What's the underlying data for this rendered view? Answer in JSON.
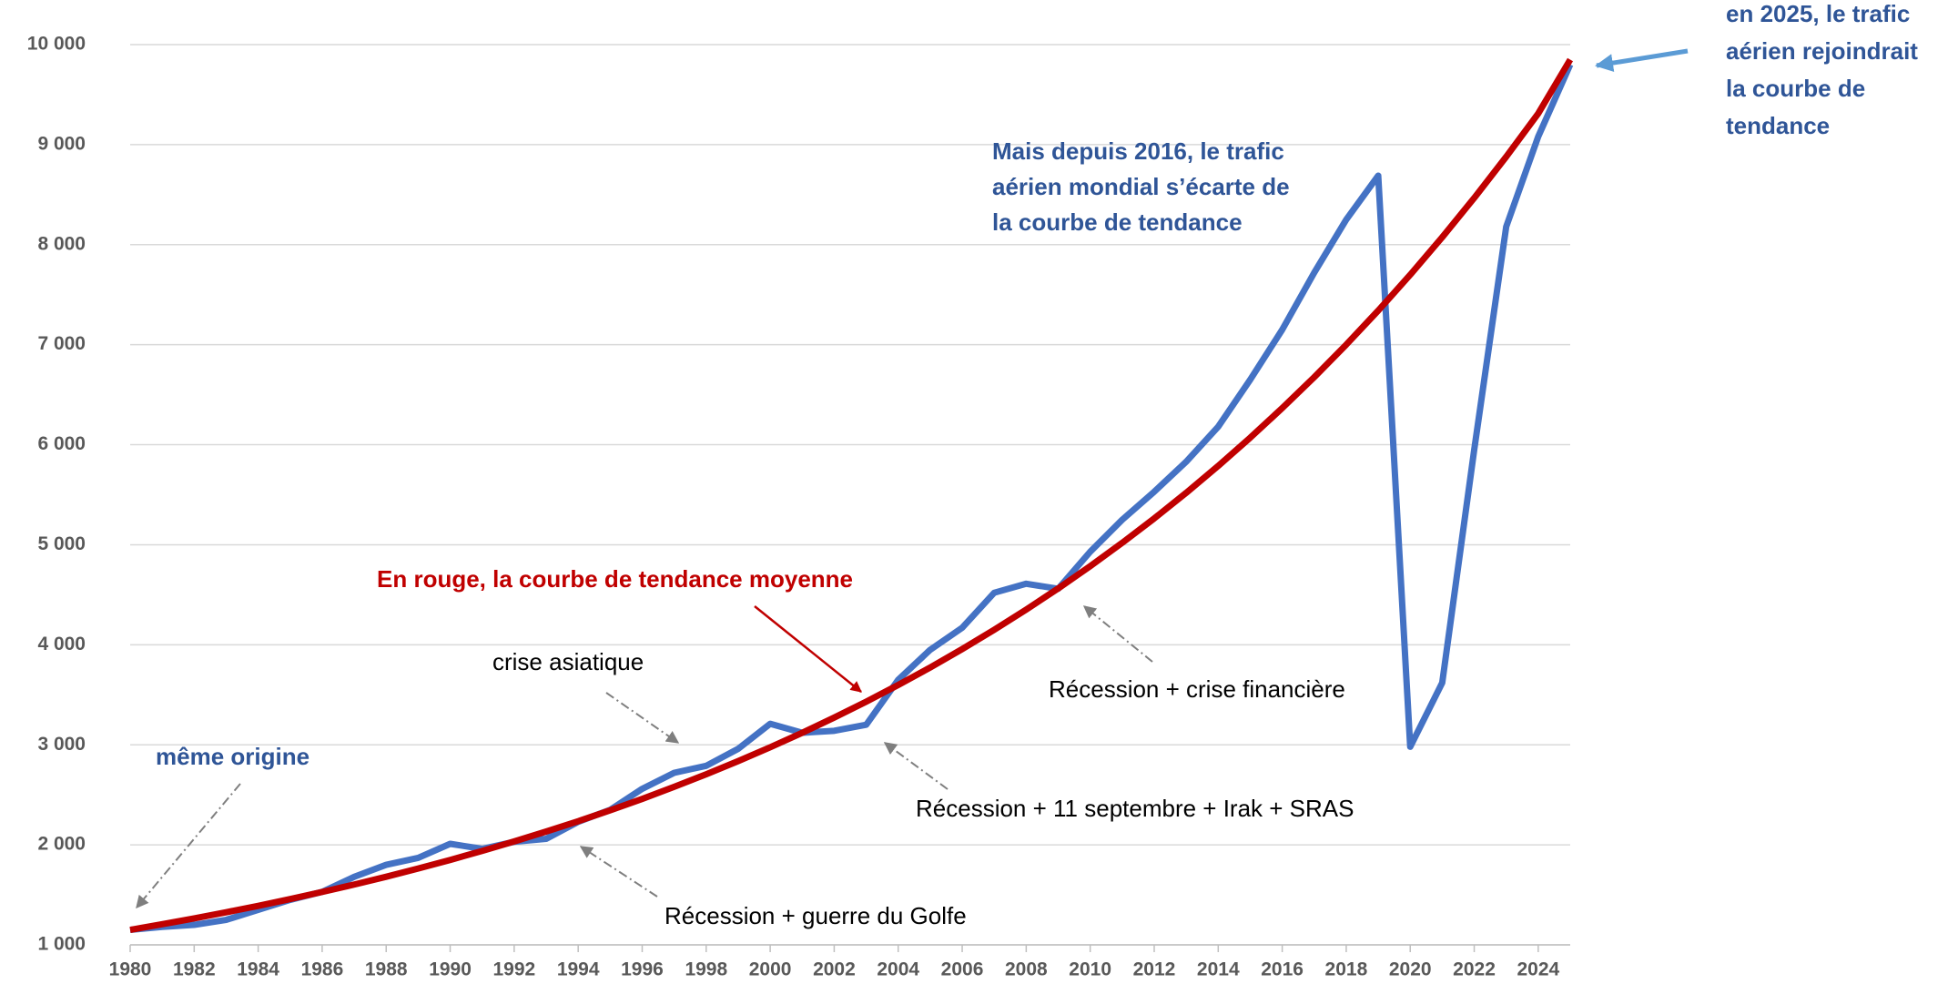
{
  "chart_data": {
    "type": "line",
    "x": [
      1980,
      1981,
      1982,
      1983,
      1984,
      1985,
      1986,
      1987,
      1988,
      1989,
      1990,
      1991,
      1992,
      1993,
      1994,
      1995,
      1996,
      1997,
      1998,
      1999,
      2000,
      2001,
      2002,
      2003,
      2004,
      2005,
      2006,
      2007,
      2008,
      2009,
      2010,
      2011,
      2012,
      2013,
      2014,
      2015,
      2016,
      2017,
      2018,
      2019,
      2020,
      2021,
      2022,
      2023,
      2024,
      2025
    ],
    "series": [
      {
        "color": "#4472c4",
        "values": [
          1150,
          1180,
          1200,
          1250,
          1350,
          1450,
          1530,
          1680,
          1800,
          1870,
          2010,
          1960,
          2030,
          2060,
          2230,
          2350,
          2560,
          2720,
          2790,
          2960,
          3210,
          3120,
          3140,
          3200,
          3650,
          3950,
          4170,
          4520,
          4610,
          4560,
          4930,
          5250,
          5530,
          5830,
          6180,
          6650,
          7150,
          7720,
          8250,
          8690,
          2980,
          3620,
          5950,
          8180,
          9080,
          9800
        ]
      },
      {
        "color": "#c00000",
        "values": [
          1150,
          1206,
          1264,
          1326,
          1390,
          1458,
          1529,
          1603,
          1681,
          1763,
          1849,
          1939,
          2034,
          2133,
          2236,
          2345,
          2459,
          2580,
          2705,
          2837,
          2975,
          3120,
          3272,
          3431,
          3598,
          3773,
          3957,
          4150,
          4352,
          4563,
          4786,
          5019,
          5263,
          5519,
          5788,
          6070,
          6366,
          6675,
          7000,
          7341,
          7699,
          8074,
          8467,
          8879,
          9311,
          9850
        ]
      }
    ],
    "xlim": [
      1980,
      2025
    ],
    "xticks": [
      1980,
      1982,
      1984,
      1986,
      1988,
      1990,
      1992,
      1994,
      1996,
      1998,
      2000,
      2002,
      2004,
      2006,
      2008,
      2010,
      2012,
      2014,
      2016,
      2018,
      2020,
      2022,
      2024
    ],
    "ylim": [
      1000,
      10000
    ],
    "yticks": [
      {
        "value": 1000,
        "label": "1 000"
      },
      {
        "value": 2000,
        "label": "2 000"
      },
      {
        "value": 3000,
        "label": "3 000"
      },
      {
        "value": 4000,
        "label": "4 000"
      },
      {
        "value": 5000,
        "label": "5 000"
      },
      {
        "value": 6000,
        "label": "6 000"
      },
      {
        "value": 7000,
        "label": "7 000"
      },
      {
        "value": 8000,
        "label": "8 000"
      },
      {
        "value": 9000,
        "label": "9 000"
      },
      {
        "value": 10000,
        "label": "10 000"
      }
    ],
    "grid": true,
    "annotations": [
      {
        "lines": [
          "en 2025, le trafic",
          "aérien rejoindrait",
          "la courbe de",
          "tendance"
        ],
        "color": "#2f5597",
        "bold": true
      },
      {
        "lines": [
          "Mais depuis 2016, le trafic",
          "aérien mondial s’écarte de",
          "la courbe de tendance"
        ],
        "color": "#2f5597",
        "bold": true
      },
      {
        "lines": [
          "En rouge, la courbe de tendance moyenne"
        ],
        "color": "#c00000",
        "bold": true
      },
      {
        "lines": [
          "crise asiatique"
        ],
        "color": "#000000",
        "bold": false
      },
      {
        "lines": [
          "même origine"
        ],
        "color": "#2f5597",
        "bold": true
      },
      {
        "lines": [
          "Récession + 11 septembre + Irak + SRAS"
        ],
        "color": "#000000",
        "bold": false
      },
      {
        "lines": [
          "Récession + crise financière"
        ],
        "color": "#000000",
        "bold": false
      },
      {
        "lines": [
          "Récession + guerre du Golfe"
        ],
        "color": "#000000",
        "bold": false
      }
    ]
  }
}
